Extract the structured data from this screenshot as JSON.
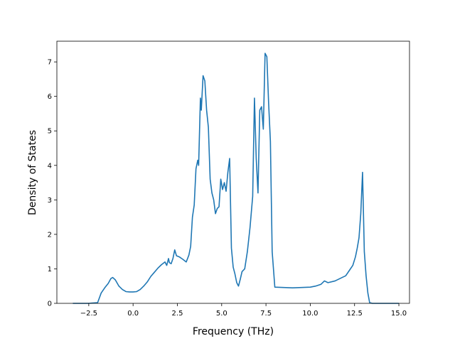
{
  "chart_data": {
    "type": "line",
    "title": "",
    "xlabel": "Frequency (THz)",
    "ylabel": "Density of States",
    "xlim": [
      -4.3,
      15.6
    ],
    "ylim": [
      0,
      7.6
    ],
    "xticks": [
      -2.5,
      0.0,
      2.5,
      5.0,
      7.5,
      10.0,
      12.5,
      15.0
    ],
    "xtick_labels": [
      "−2.5",
      "0.0",
      "2.5",
      "5.0",
      "7.5",
      "10.0",
      "12.5",
      "15.0"
    ],
    "yticks": [
      0,
      1,
      2,
      3,
      4,
      5,
      6,
      7
    ],
    "ytick_labels": [
      "0",
      "1",
      "2",
      "3",
      "4",
      "5",
      "6",
      "7"
    ],
    "grid": false,
    "legend": "none",
    "colors": {
      "line": "#1f77b4"
    },
    "series": [
      {
        "x": [
          -3.4,
          -2.5,
          -2.0,
          -1.8,
          -1.6,
          -1.4,
          -1.25,
          -1.15,
          -1.0,
          -0.8,
          -0.6,
          -0.4,
          -0.2,
          0.0,
          0.2,
          0.4,
          0.6,
          0.8,
          1.0,
          1.2,
          1.4,
          1.6,
          1.8,
          1.9,
          2.0,
          2.05,
          2.15,
          2.25,
          2.35,
          2.45,
          2.6,
          2.8,
          3.0,
          3.15,
          3.25,
          3.35,
          3.45,
          3.55,
          3.65,
          3.7,
          3.8,
          3.85,
          3.95,
          4.05,
          4.15,
          4.25,
          4.35,
          4.45,
          4.55,
          4.65,
          4.75,
          4.85,
          4.95,
          5.05,
          5.15,
          5.25,
          5.35,
          5.45,
          5.55,
          5.65,
          5.75,
          5.85,
          5.95,
          6.05,
          6.15,
          6.3,
          6.45,
          6.6,
          6.75,
          6.85,
          6.95,
          7.05,
          7.15,
          7.25,
          7.35,
          7.45,
          7.55,
          7.65,
          7.75,
          7.85,
          8.0,
          8.5,
          9.0,
          9.5,
          10.0,
          10.3,
          10.6,
          10.8,
          11.0,
          11.4,
          11.8,
          12.0,
          12.2,
          12.4,
          12.55,
          12.65,
          12.75,
          12.85,
          12.95,
          13.05,
          13.15,
          13.25,
          13.35,
          13.5,
          14.0,
          15.0
        ],
        "y": [
          0.0,
          0.0,
          0.02,
          0.3,
          0.45,
          0.58,
          0.72,
          0.75,
          0.68,
          0.5,
          0.4,
          0.34,
          0.33,
          0.33,
          0.34,
          0.4,
          0.5,
          0.62,
          0.78,
          0.9,
          1.02,
          1.12,
          1.2,
          1.1,
          1.3,
          1.18,
          1.15,
          1.3,
          1.55,
          1.38,
          1.35,
          1.28,
          1.2,
          1.4,
          1.65,
          2.5,
          2.85,
          3.9,
          4.15,
          4.0,
          5.95,
          5.6,
          6.6,
          6.45,
          5.6,
          5.1,
          3.6,
          3.2,
          3.0,
          2.6,
          2.75,
          2.8,
          3.6,
          3.3,
          3.5,
          3.25,
          3.8,
          4.2,
          1.6,
          1.05,
          0.85,
          0.6,
          0.5,
          0.7,
          0.92,
          1.0,
          1.5,
          2.2,
          3.1,
          5.95,
          4.2,
          3.2,
          5.6,
          5.7,
          5.05,
          7.25,
          7.15,
          5.8,
          4.7,
          1.5,
          0.47,
          0.46,
          0.45,
          0.46,
          0.47,
          0.5,
          0.55,
          0.65,
          0.6,
          0.65,
          0.75,
          0.8,
          0.95,
          1.1,
          1.35,
          1.6,
          1.9,
          2.6,
          3.8,
          1.5,
          0.8,
          0.3,
          0.02,
          0.0,
          0.0,
          0.0
        ]
      }
    ]
  }
}
